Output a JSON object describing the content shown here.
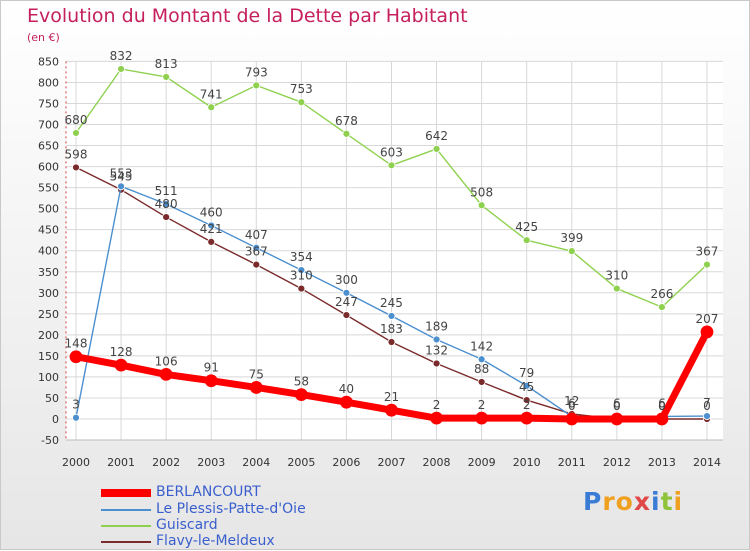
{
  "title": "Evolution du Montant de la Dette par Habitant",
  "subtitle": "(en €)",
  "logo_text": "Proxiti",
  "chart_data": {
    "type": "line",
    "title": "Evolution du Montant de la Dette par Habitant",
    "subtitle": "(en €)",
    "x": [
      2000,
      2001,
      2002,
      2003,
      2004,
      2005,
      2006,
      2007,
      2008,
      2009,
      2010,
      2011,
      2012,
      2013,
      2014
    ],
    "yticks": [
      -50,
      0,
      50,
      100,
      150,
      200,
      250,
      300,
      350,
      400,
      450,
      500,
      550,
      600,
      650,
      700,
      750,
      800,
      850
    ],
    "ylim": [
      -50,
      850
    ],
    "grid": true,
    "legend_position": "bottom-left",
    "series": [
      {
        "name": "BERLANCOURT",
        "color": "#ff0000",
        "values": [
          148,
          128,
          106,
          91,
          75,
          58,
          40,
          21,
          2,
          2,
          2,
          0,
          0,
          0,
          207
        ]
      },
      {
        "name": "Le Plessis-Patte-d'Oie",
        "color": "#4c8fcf",
        "values": [
          3,
          553,
          511,
          460,
          407,
          354,
          300,
          245,
          189,
          142,
          79,
          6,
          6,
          6,
          7
        ]
      },
      {
        "name": "Guiscard",
        "color": "#8fd14f",
        "values": [
          680,
          832,
          813,
          741,
          793,
          753,
          678,
          603,
          642,
          508,
          425,
          399,
          310,
          266,
          367
        ]
      },
      {
        "name": "Flavy-le-Meldeux",
        "color": "#7a2a2a",
        "values": [
          598,
          545,
          480,
          421,
          367,
          310,
          247,
          183,
          132,
          88,
          45,
          12,
          0,
          0,
          0
        ]
      }
    ]
  }
}
